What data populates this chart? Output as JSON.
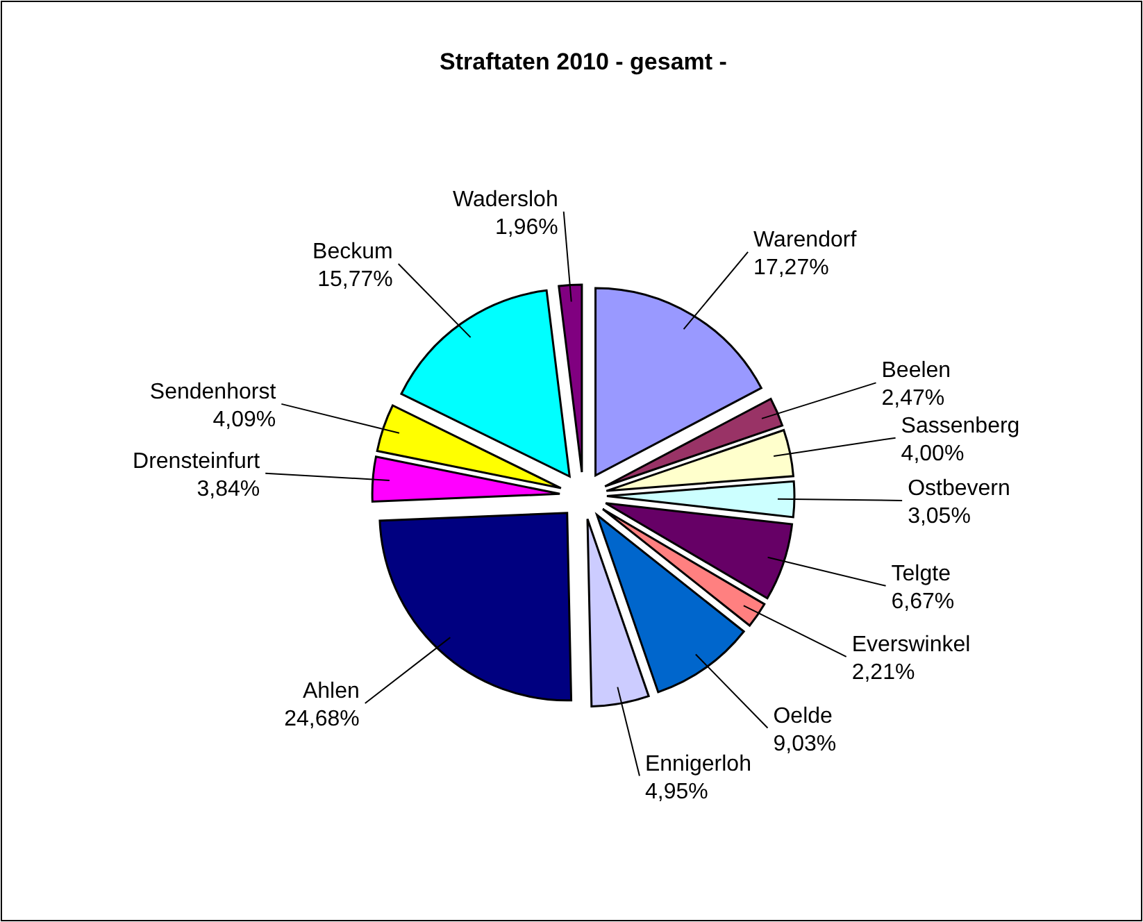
{
  "chart_data": {
    "type": "pie",
    "title": "Straftaten 2010  - gesamt -",
    "categories": [
      "Warendorf",
      "Beelen",
      "Sassenberg",
      "Ostbevern",
      "Telgte",
      "Everswinkel",
      "Oelde",
      "Ennigerloh",
      "Ahlen",
      "Drensteinfurt",
      "Sendenhorst",
      "Beckum",
      "Wadersloh"
    ],
    "values": [
      17.27,
      2.47,
      4.0,
      3.05,
      6.67,
      2.21,
      9.03,
      4.95,
      24.68,
      3.84,
      4.09,
      15.77,
      1.96
    ],
    "value_labels": [
      "17,27%",
      "2,47%",
      "4,00%",
      "3,05%",
      "6,67%",
      "2,21%",
      "9,03%",
      "4,95%",
      "24,68%",
      "3,84%",
      "4,09%",
      "15,77%",
      "1,96%"
    ],
    "colors": [
      "#9999ff",
      "#993366",
      "#ffffcc",
      "#ccffff",
      "#660066",
      "#ff8080",
      "#0066cc",
      "#ccccff",
      "#000080",
      "#ff00ff",
      "#ffff00",
      "#00ffff",
      "#800080"
    ]
  }
}
